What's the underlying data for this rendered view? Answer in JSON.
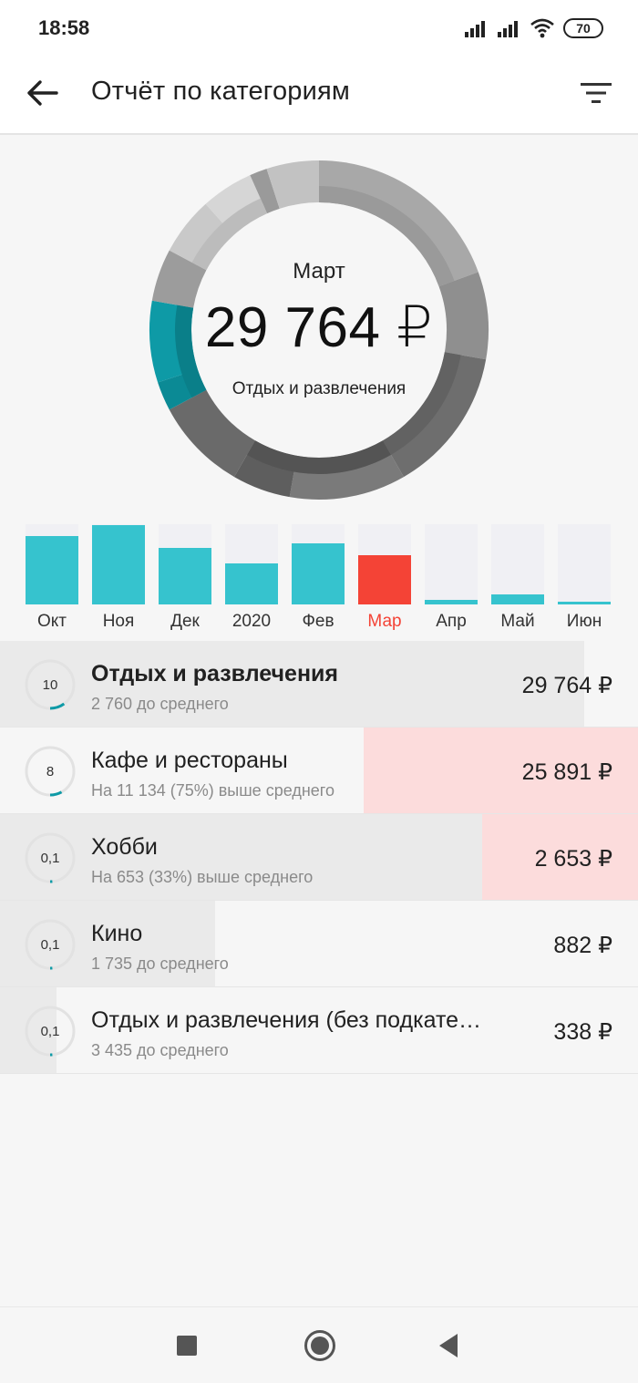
{
  "status": {
    "time": "18:58",
    "battery": "70",
    "icons": [
      "signal-icon",
      "signal-icon",
      "wifi-icon",
      "battery-icon"
    ]
  },
  "header": {
    "title": "Отчёт по категориям",
    "back_icon": "arrow-left-icon",
    "filter_icon": "filter-icon"
  },
  "donut": {
    "month": "Март",
    "amount": "29 764 ₽",
    "category": "Отдых и развлечения",
    "highlight_color": "#0e9aa6"
  },
  "chart_data": {
    "type": "bar",
    "categories": [
      "Окт",
      "Ноя",
      "Дек",
      "2020",
      "Фев",
      "Мар",
      "Апр",
      "Май",
      "Июн"
    ],
    "values": [
      0.85,
      0.99,
      0.71,
      0.51,
      0.76,
      0.61,
      0.06,
      0.13,
      0.03
    ],
    "selected": "Мар",
    "colors": {
      "bar": "#36c3ce",
      "selected": "#f44336",
      "track": "#f0f0f4"
    }
  },
  "categories": [
    {
      "ring": "10",
      "name": "Отдых и развлечения",
      "sub": "2 760 до среднего",
      "amount": "29 764 ₽",
      "bold": true,
      "share": 0.1,
      "bar_color": "#eaeaea",
      "bar_from": 0,
      "bar_to": 0.915
    },
    {
      "ring": "8",
      "name": "Кафе и рестораны",
      "sub": "На 11 134 (75%) выше среднего",
      "amount": "25 891 ₽",
      "bold": false,
      "share": 0.08,
      "bar_color": "#fcdcdc",
      "bar_from": 0.57,
      "bar_to": 1.0
    },
    {
      "ring": "0,1",
      "name": "Хобби",
      "sub": "На 653 (33%) выше среднего",
      "amount": "2 653 ₽",
      "bold": false,
      "share": 0.01,
      "bar_color": "#eaeaea",
      "bar_from": 0,
      "bar_to": 0.755,
      "bar2_color": "#fcdcdc",
      "bar2_from": 0.755,
      "bar2_to": 1.0
    },
    {
      "ring": "0,1",
      "name": "Кино",
      "sub": "1 735 до среднего",
      "amount": "882 ₽",
      "bold": false,
      "share": 0.01,
      "bar_color": "#eaeaea",
      "bar_from": 0,
      "bar_to": 0.337
    },
    {
      "ring": "0,1",
      "name": "Отдых и развлечения (без подкате…",
      "sub": "3 435 до среднего",
      "amount": "338 ₽",
      "bold": false,
      "share": 0.01,
      "bar_color": "#eaeaea",
      "bar_from": 0,
      "bar_to": 0.088
    }
  ],
  "nav": {
    "recent_icon": "square-recent-icon",
    "home_icon": "circle-home-icon",
    "back_icon": "triangle-back-icon"
  }
}
